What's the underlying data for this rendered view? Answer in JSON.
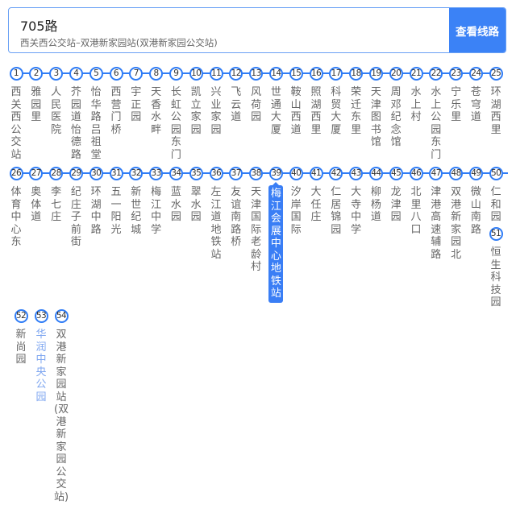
{
  "header": {
    "title": "705路",
    "subtitle": "西关西公交站–双港新家园站(双港新家园公交站)",
    "button_label": "查看线路"
  },
  "colors": {
    "accent": "#2f7cf6",
    "button": "#3b82f6",
    "current_station": "#3a7ef5",
    "station_text": "#666666",
    "highlight_text": "#7ea6f0"
  },
  "current_station": 39,
  "stations": [
    {
      "num": "1",
      "name": "西关西公交站"
    },
    {
      "num": "2",
      "name": "雅园里"
    },
    {
      "num": "3",
      "name": "人民医院"
    },
    {
      "num": "4",
      "name": "芥园道怡德路"
    },
    {
      "num": "5",
      "name": "怡华路吕祖堂"
    },
    {
      "num": "6",
      "name": "西营门桥"
    },
    {
      "num": "7",
      "name": "宇正园"
    },
    {
      "num": "8",
      "name": "天香水畔"
    },
    {
      "num": "9",
      "name": "长虹公园东门"
    },
    {
      "num": "10",
      "name": "凯立家园"
    },
    {
      "num": "11",
      "name": "兴业家园"
    },
    {
      "num": "12",
      "name": "飞云道"
    },
    {
      "num": "13",
      "name": "风荷园"
    },
    {
      "num": "14",
      "name": "世通大厦"
    },
    {
      "num": "15",
      "name": "鞍山西道"
    },
    {
      "num": "16",
      "name": "照湖西里"
    },
    {
      "num": "17",
      "name": "科贸大厦"
    },
    {
      "num": "18",
      "name": "荣迁东里"
    },
    {
      "num": "19",
      "name": "天津图书馆"
    },
    {
      "num": "20",
      "name": "周邓纪念馆"
    },
    {
      "num": "21",
      "name": "水上村"
    },
    {
      "num": "22",
      "name": "水上公园东门"
    },
    {
      "num": "23",
      "name": "宁乐里"
    },
    {
      "num": "24",
      "name": "苍穹道"
    },
    {
      "num": "25",
      "name": "环湖西里"
    },
    {
      "num": "26",
      "name": "体育中心东"
    },
    {
      "num": "27",
      "name": "奥体道"
    },
    {
      "num": "28",
      "name": "李七庄"
    },
    {
      "num": "29",
      "name": "纪庄子前街"
    },
    {
      "num": "30",
      "name": "环湖中路"
    },
    {
      "num": "31",
      "name": "五一阳光"
    },
    {
      "num": "32",
      "name": "新世纪城"
    },
    {
      "num": "33",
      "name": "梅江中学"
    },
    {
      "num": "34",
      "name": "蓝水园"
    },
    {
      "num": "35",
      "name": "翠水园"
    },
    {
      "num": "36",
      "name": "左江道地铁站"
    },
    {
      "num": "37",
      "name": "友谊南路桥"
    },
    {
      "num": "38",
      "name": "天津国际老龄村"
    },
    {
      "num": "39",
      "name": "梅江会展中心地铁站"
    },
    {
      "num": "40",
      "name": "汐岸国际"
    },
    {
      "num": "41",
      "name": "大任庄"
    },
    {
      "num": "42",
      "name": "仁居锦园"
    },
    {
      "num": "43",
      "name": "大寺中学"
    },
    {
      "num": "44",
      "name": "柳杨道"
    },
    {
      "num": "45",
      "name": "龙津园"
    },
    {
      "num": "46",
      "name": "北里八口"
    },
    {
      "num": "47",
      "name": "津港高速辅路"
    },
    {
      "num": "48",
      "name": "双港新家园北"
    },
    {
      "num": "49",
      "name": "微山南路"
    },
    {
      "num": "50",
      "name": "仁和园"
    },
    {
      "num": "51",
      "name": "恒生科技园"
    },
    {
      "num": "52",
      "name": "新尚园"
    },
    {
      "num": "53",
      "name": "华润中央公园",
      "highlight": true
    },
    {
      "num": "54",
      "name": "双港新家园站(双港新家园公交站)"
    }
  ]
}
